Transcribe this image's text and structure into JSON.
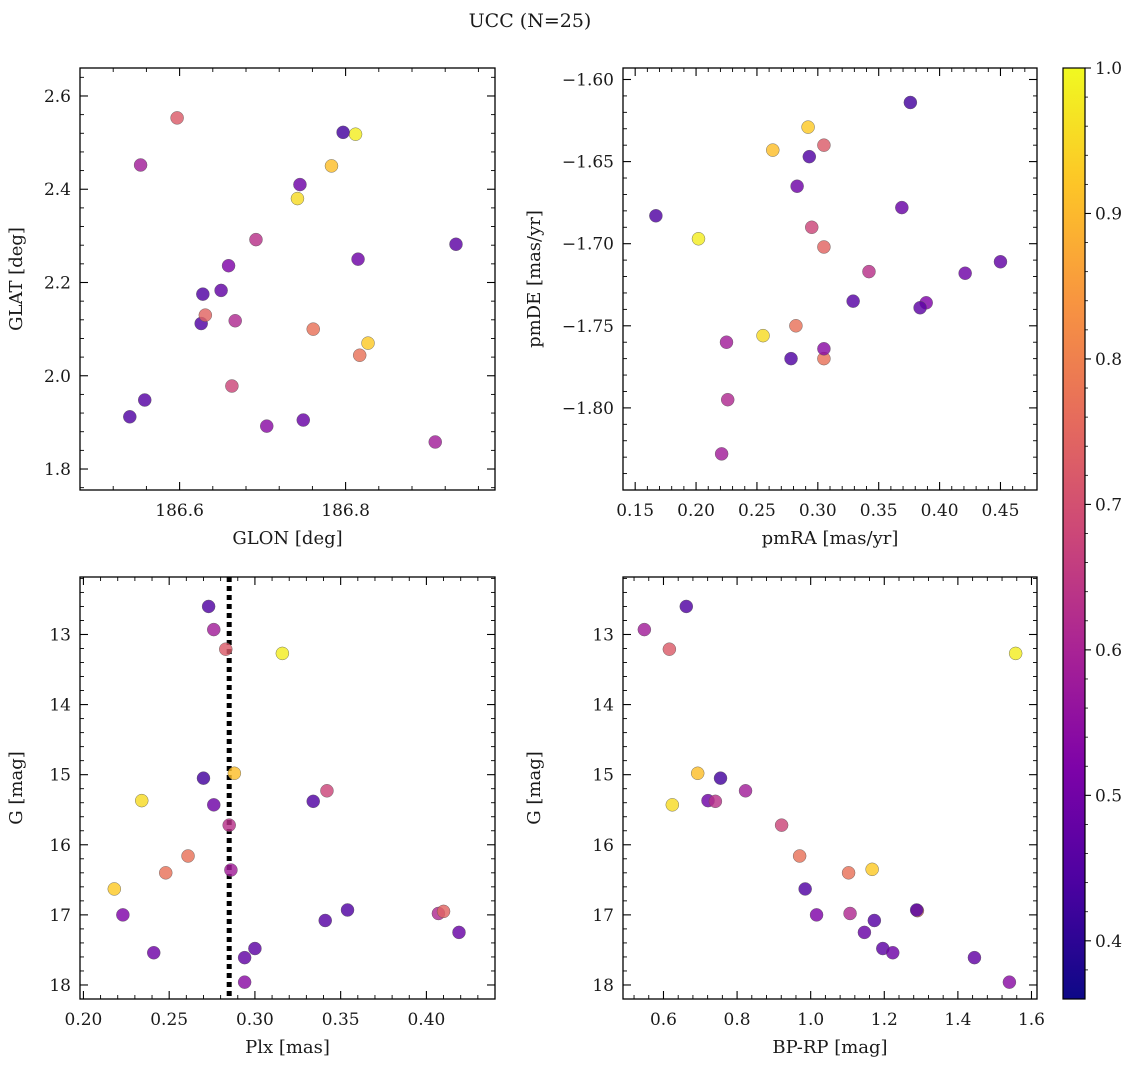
{
  "figure": {
    "title": "UCC (N=25)"
  },
  "colorbar": {
    "min": 0.36,
    "max": 1.0,
    "ticks": [
      0.4,
      0.5,
      0.6,
      0.7,
      0.8,
      0.9,
      1.0
    ],
    "tick_labels": [
      "0.4",
      "0.5",
      "0.6",
      "0.7",
      "0.8",
      "0.9",
      "1.0"
    ],
    "colormap": "plasma"
  },
  "marker_probabilities": [
    0.4,
    0.55,
    0.7,
    0.98,
    0.9,
    0.38,
    0.95,
    0.45,
    0.6,
    0.55,
    0.75,
    0.65,
    0.4,
    0.92,
    0.75,
    0.48,
    0.58,
    0.72,
    0.4,
    0.41,
    0.44,
    0.42,
    0.45,
    0.43,
    0.5
  ],
  "chart_data": [
    {
      "type": "scatter",
      "title": "",
      "xlabel": "GLON [deg]",
      "ylabel": "GLAT [deg]",
      "xlim": [
        186.48,
        186.98
      ],
      "ylim": [
        1.755,
        2.66
      ],
      "xticks": [
        186.6,
        186.8
      ],
      "xtick_labels": [
        "186.6",
        "186.8"
      ],
      "yticks": [
        1.8,
        2.0,
        2.2,
        2.4,
        2.6
      ],
      "ytick_labels": [
        "1.8",
        "2.0",
        "2.2",
        "2.4",
        "2.6"
      ],
      "x": [
        186.54,
        186.553,
        186.597,
        186.812,
        186.783,
        186.797,
        186.742,
        186.745,
        186.692,
        186.908,
        186.817,
        186.663,
        186.626,
        186.827,
        186.761,
        186.659,
        186.667,
        186.631,
        186.628,
        186.558,
        186.749,
        186.933,
        186.815,
        186.65,
        186.705
      ],
      "y": [
        1.912,
        2.452,
        2.553,
        2.518,
        2.45,
        2.522,
        2.38,
        2.41,
        2.292,
        1.858,
        2.044,
        1.978,
        2.112,
        2.07,
        2.1,
        2.236,
        2.118,
        2.13,
        2.175,
        1.948,
        1.905,
        2.282,
        2.25,
        2.183,
        1.892
      ]
    },
    {
      "type": "scatter",
      "title": "",
      "xlabel": "pmRA [mas/yr]",
      "ylabel": "pmDE [mas/yr]",
      "xlim": [
        0.14,
        0.48
      ],
      "ylim": [
        -1.85,
        -1.593
      ],
      "xticks": [
        0.15,
        0.2,
        0.25,
        0.3,
        0.35,
        0.4,
        0.45
      ],
      "xtick_labels": [
        "0.15",
        "0.20",
        "0.25",
        "0.30",
        "0.35",
        "0.40",
        "0.45"
      ],
      "yticks": [
        -1.8,
        -1.75,
        -1.7,
        -1.65,
        -1.6
      ],
      "ytick_labels": [
        "−1.80",
        "−1.75",
        "−1.70",
        "−1.65",
        "−1.60"
      ],
      "x": [
        0.167,
        0.225,
        0.305,
        0.202,
        0.263,
        0.376,
        0.255,
        0.283,
        0.342,
        0.221,
        0.305,
        0.295,
        0.293,
        0.292,
        0.282,
        0.389,
        0.226,
        0.305,
        0.278,
        0.329,
        0.369,
        0.384,
        0.421,
        0.45,
        0.305
      ],
      "y": [
        -1.683,
        -1.76,
        -1.64,
        -1.697,
        -1.643,
        -1.614,
        -1.756,
        -1.665,
        -1.717,
        -1.828,
        -1.77,
        -1.69,
        -1.647,
        -1.629,
        -1.75,
        -1.736,
        -1.795,
        -1.702,
        -1.77,
        -1.735,
        -1.678,
        -1.739,
        -1.718,
        -1.711,
        -1.764
      ]
    },
    {
      "type": "scatter",
      "title": "",
      "xlabel": "Plx [mas]",
      "ylabel": "G [mag]",
      "xlim": [
        0.198,
        0.44
      ],
      "ylim": [
        18.2,
        12.18
      ],
      "y_inverted": true,
      "xticks": [
        0.2,
        0.25,
        0.3,
        0.35,
        0.4
      ],
      "xtick_labels": [
        "0.20",
        "0.25",
        "0.30",
        "0.35",
        "0.40"
      ],
      "yticks": [
        13,
        14,
        15,
        16,
        17,
        18
      ],
      "ytick_labels": [
        "13",
        "14",
        "15",
        "16",
        "17",
        "18"
      ],
      "vline": 0.285,
      "x": [
        0.273,
        0.276,
        0.283,
        0.316,
        0.288,
        0.27,
        0.234,
        0.276,
        0.285,
        0.286,
        0.261,
        0.342,
        0.334,
        0.218,
        0.248,
        0.223,
        0.407,
        0.41,
        0.354,
        0.341,
        0.419,
        0.3,
        0.241,
        0.294,
        0.294
      ],
      "y": [
        12.6,
        12.93,
        13.21,
        13.27,
        14.98,
        15.05,
        15.37,
        15.43,
        15.72,
        16.36,
        16.16,
        15.23,
        15.38,
        16.63,
        16.4,
        17.0,
        16.98,
        16.95,
        16.93,
        17.08,
        17.25,
        17.48,
        17.54,
        17.61,
        17.96
      ]
    },
    {
      "type": "scatter",
      "title": "",
      "xlabel": "BP-RP [mag]",
      "ylabel": "G [mag]",
      "xlim": [
        0.49,
        1.615
      ],
      "ylim": [
        18.2,
        12.18
      ],
      "y_inverted": true,
      "xticks": [
        0.6,
        0.8,
        1.0,
        1.2,
        1.4,
        1.6
      ],
      "xtick_labels": [
        "0.6",
        "0.8",
        "1.0",
        "1.2",
        "1.4",
        "1.6"
      ],
      "yticks": [
        13,
        14,
        15,
        16,
        17,
        18
      ],
      "ytick_labels": [
        "13",
        "14",
        "15",
        "16",
        "17",
        "18"
      ],
      "x": [
        0.662,
        0.548,
        0.616,
        1.557,
        0.693,
        0.755,
        0.624,
        0.721,
        0.741,
        0.823,
        0.97,
        0.921,
        0.985,
        1.167,
        1.103,
        1.016,
        1.107,
        1.29,
        1.288,
        1.173,
        1.146,
        1.196,
        1.223,
        1.445,
        1.54
      ],
      "y": [
        12.6,
        12.93,
        13.21,
        13.27,
        14.98,
        15.05,
        15.43,
        15.37,
        15.38,
        15.23,
        16.16,
        15.72,
        16.63,
        16.35,
        16.4,
        17.0,
        16.98,
        16.94,
        16.93,
        17.08,
        17.25,
        17.48,
        17.54,
        17.61,
        17.96
      ]
    }
  ]
}
